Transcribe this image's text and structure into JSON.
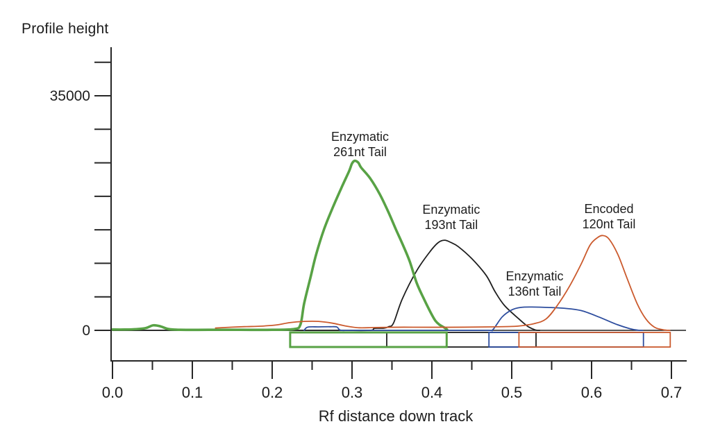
{
  "chart_data": {
    "type": "line",
    "title": "",
    "ylabel": "Profile height",
    "xlabel": "Rf distance down track",
    "grid": false,
    "zero_line": true,
    "legend_position": "labels-on-plot",
    "axis_color": "#262626",
    "x_axis": {
      "min": 0.0,
      "max": 0.72,
      "major_ticks": [
        0.0,
        0.1,
        0.2,
        0.3,
        0.4,
        0.5,
        0.6,
        0.7
      ],
      "major_tick_labels": [
        "0.0",
        "0.1",
        "0.2",
        "0.3",
        "0.4",
        "0.5",
        "0.6",
        "0.7"
      ],
      "minor_ticks": [
        0.05,
        0.15,
        0.25,
        0.35,
        0.45,
        0.55,
        0.65
      ]
    },
    "y_axis": {
      "min": 0,
      "max": 40000,
      "tick_step": 5000,
      "ticks": [
        0,
        5000,
        10000,
        15000,
        20000,
        25000,
        30000,
        35000,
        40000
      ],
      "labeled_ticks": [
        {
          "value": 35000,
          "label": "35000"
        },
        {
          "value": 0,
          "label": "0"
        }
      ]
    },
    "series": [
      {
        "id": "enzymatic-193nt-tail",
        "name": "Enzymatic 193nt Tail",
        "color": "#1e1e1e",
        "stroke_width": 1.8,
        "label": {
          "lines": [
            "Enzymatic",
            "193nt Tail"
          ],
          "x": 0.4243,
          "y": 18000
        },
        "region": {
          "start": 0.3435,
          "end": 0.5305
        },
        "points": [
          [
            0.0,
            0
          ],
          [
            0.1,
            0
          ],
          [
            0.2,
            0
          ],
          [
            0.28,
            0
          ],
          [
            0.322,
            0
          ],
          [
            0.328,
            300
          ],
          [
            0.34,
            320
          ],
          [
            0.346,
            550
          ],
          [
            0.352,
            1100
          ],
          [
            0.363,
            4700
          ],
          [
            0.381,
            8900
          ],
          [
            0.398,
            11800
          ],
          [
            0.408,
            13100
          ],
          [
            0.416,
            13450
          ],
          [
            0.424,
            13100
          ],
          [
            0.433,
            12500
          ],
          [
            0.45,
            10700
          ],
          [
            0.468,
            8200
          ],
          [
            0.479,
            5800
          ],
          [
            0.491,
            3700
          ],
          [
            0.509,
            1700
          ],
          [
            0.52,
            600
          ],
          [
            0.5295,
            60
          ],
          [
            0.535,
            0
          ]
        ]
      },
      {
        "id": "enzymatic-261nt-tail",
        "name": "Enzymatic 261nt Tail",
        "color": "#58a245",
        "stroke_width": 3.6,
        "label": {
          "lines": [
            "Enzymatic",
            "261nt Tail"
          ],
          "x": 0.31,
          "y": 28900
        },
        "region": {
          "start": 0.2225,
          "end": 0.4185
        },
        "points": [
          [
            0.0,
            120
          ],
          [
            0.015,
            120
          ],
          [
            0.03,
            180
          ],
          [
            0.042,
            350
          ],
          [
            0.051,
            750
          ],
          [
            0.06,
            600
          ],
          [
            0.07,
            200
          ],
          [
            0.085,
            80
          ],
          [
            0.12,
            80
          ],
          [
            0.16,
            80
          ],
          [
            0.2,
            80
          ],
          [
            0.228,
            200
          ],
          [
            0.2355,
            900
          ],
          [
            0.24,
            4000
          ],
          [
            0.248,
            7900
          ],
          [
            0.255,
            11300
          ],
          [
            0.265,
            15100
          ],
          [
            0.2765,
            18500
          ],
          [
            0.288,
            21600
          ],
          [
            0.2965,
            23800
          ],
          [
            0.3,
            24900
          ],
          [
            0.3035,
            25300
          ],
          [
            0.308,
            25000
          ],
          [
            0.3113,
            24300
          ],
          [
            0.3226,
            22700
          ],
          [
            0.3348,
            20300
          ],
          [
            0.3461,
            17500
          ],
          [
            0.3548,
            15100
          ],
          [
            0.3635,
            12800
          ],
          [
            0.3722,
            10300
          ],
          [
            0.3809,
            7100
          ],
          [
            0.3896,
            4800
          ],
          [
            0.3983,
            2700
          ],
          [
            0.4043,
            1450
          ],
          [
            0.4096,
            830
          ],
          [
            0.4157,
            410
          ],
          [
            0.419,
            120
          ]
        ]
      },
      {
        "id": "enzymatic-136nt-tail",
        "name": "Enzymatic 136nt Tail",
        "color": "#2d4d9e",
        "stroke_width": 1.8,
        "label": {
          "lines": [
            "Enzymatic",
            "136nt Tail"
          ],
          "x": 0.5287,
          "y": 8100
        },
        "region": {
          "start": 0.4715,
          "end": 0.665
        },
        "points": [
          [
            0.24,
            0
          ],
          [
            0.2445,
            480
          ],
          [
            0.258,
            520
          ],
          [
            0.272,
            540
          ],
          [
            0.281,
            500
          ],
          [
            0.2855,
            20
          ],
          [
            0.3,
            0
          ],
          [
            0.35,
            0
          ],
          [
            0.42,
            0
          ],
          [
            0.47,
            0
          ],
          [
            0.4765,
            120
          ],
          [
            0.488,
            2000
          ],
          [
            0.5,
            3050
          ],
          [
            0.511,
            3420
          ],
          [
            0.525,
            3480
          ],
          [
            0.545,
            3420
          ],
          [
            0.565,
            3300
          ],
          [
            0.587,
            2950
          ],
          [
            0.609,
            2000
          ],
          [
            0.63,
            950
          ],
          [
            0.648,
            250
          ],
          [
            0.658,
            30
          ],
          [
            0.664,
            0
          ]
        ]
      },
      {
        "id": "encoded-120nt-tail",
        "name": "Encoded 120nt Tail",
        "color": "#cb5a2d",
        "stroke_width": 1.8,
        "label": {
          "lines": [
            "Encoded",
            "120nt Tail"
          ],
          "x": 0.6217,
          "y": 18100
        },
        "region": {
          "start": 0.509,
          "end": 0.6985
        },
        "points": [
          [
            0.129,
            350
          ],
          [
            0.15,
            480
          ],
          [
            0.168,
            560
          ],
          [
            0.185,
            620
          ],
          [
            0.205,
            800
          ],
          [
            0.222,
            1150
          ],
          [
            0.24,
            1330
          ],
          [
            0.258,
            1330
          ],
          [
            0.275,
            1080
          ],
          [
            0.292,
            650
          ],
          [
            0.309,
            380
          ],
          [
            0.33,
            430
          ],
          [
            0.365,
            470
          ],
          [
            0.4,
            460
          ],
          [
            0.44,
            470
          ],
          [
            0.475,
            520
          ],
          [
            0.5,
            580
          ],
          [
            0.513,
            700
          ],
          [
            0.528,
            1000
          ],
          [
            0.543,
            1700
          ],
          [
            0.557,
            3700
          ],
          [
            0.572,
            6500
          ],
          [
            0.587,
            9900
          ],
          [
            0.598,
            12700
          ],
          [
            0.607,
            13800
          ],
          [
            0.614,
            14150
          ],
          [
            0.622,
            13600
          ],
          [
            0.633,
            11300
          ],
          [
            0.644,
            7900
          ],
          [
            0.657,
            4000
          ],
          [
            0.668,
            1700
          ],
          [
            0.679,
            450
          ],
          [
            0.69,
            80
          ],
          [
            0.698,
            0
          ]
        ]
      }
    ]
  }
}
